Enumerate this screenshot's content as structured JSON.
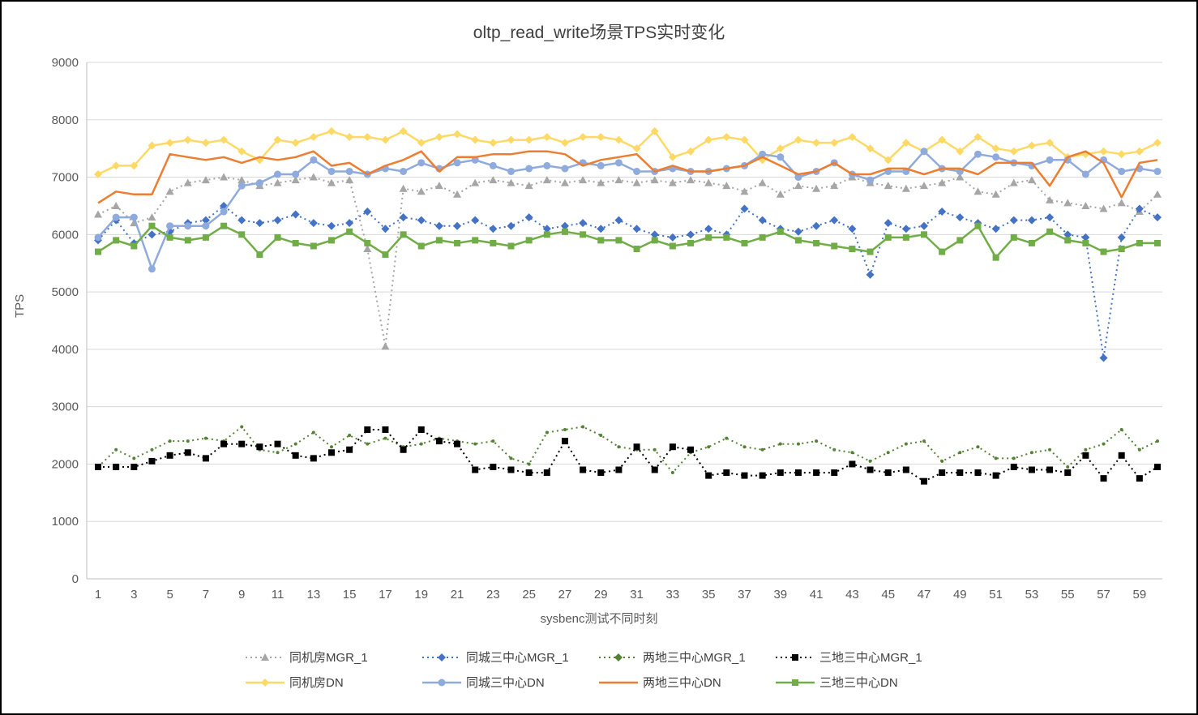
{
  "title": "oltp_read_write场景TPS实时变化",
  "axes": {
    "y_label": "TPS",
    "x_label": "sysbenc测试不同时刻"
  },
  "chart_data": {
    "type": "line",
    "title": "oltp_read_write场景TPS实时变化",
    "xlabel": "sysbenc测试不同时刻",
    "ylabel": "TPS",
    "ylim": [
      0,
      9000
    ],
    "y_tick_step": 1000,
    "grid": "horizontal",
    "legend_position": "bottom",
    "x": [
      1,
      2,
      3,
      4,
      5,
      6,
      7,
      8,
      9,
      10,
      11,
      12,
      13,
      14,
      15,
      16,
      17,
      18,
      19,
      20,
      21,
      22,
      23,
      24,
      25,
      26,
      27,
      28,
      29,
      30,
      31,
      32,
      33,
      34,
      35,
      36,
      37,
      38,
      39,
      40,
      41,
      42,
      43,
      44,
      45,
      46,
      47,
      48,
      49,
      50,
      51,
      52,
      53,
      54,
      55,
      56,
      57,
      58,
      59,
      60
    ],
    "x_ticks": [
      1,
      3,
      5,
      7,
      9,
      11,
      13,
      15,
      17,
      19,
      21,
      23,
      25,
      27,
      29,
      31,
      33,
      35,
      37,
      39,
      41,
      43,
      45,
      47,
      49,
      51,
      53,
      55,
      57,
      59
    ],
    "series": [
      {
        "name": "同机房MGR_1",
        "color": "#A6A6A6",
        "dash": "dotted",
        "marker": "triangle",
        "values": [
          6350,
          6500,
          6200,
          6300,
          6750,
          6900,
          6950,
          7000,
          6950,
          6850,
          6900,
          6950,
          7000,
          6900,
          6950,
          5750,
          4050,
          6800,
          6750,
          6850,
          6700,
          6900,
          6950,
          6900,
          6850,
          6950,
          6900,
          6950,
          6900,
          6950,
          6900,
          6950,
          6900,
          6950,
          6900,
          6850,
          6750,
          6900,
          6700,
          6850,
          6800,
          6850,
          7000,
          6900,
          6850,
          6800,
          6850,
          6900,
          7000,
          6750,
          6700,
          6900,
          6950,
          6600,
          6550,
          6500,
          6450,
          6550,
          6400,
          6700
        ]
      },
      {
        "name": "同城三中心MGR_1",
        "color": "#4472C4",
        "dash": "dotted",
        "marker": "diamond",
        "values": [
          5900,
          6250,
          5850,
          6000,
          6050,
          6200,
          6250,
          6500,
          6250,
          6200,
          6250,
          6350,
          6200,
          6150,
          6200,
          6400,
          6100,
          6300,
          6250,
          6150,
          6150,
          6250,
          6100,
          6150,
          6300,
          6100,
          6150,
          6200,
          6100,
          6250,
          6100,
          6000,
          5950,
          6000,
          6100,
          6000,
          6450,
          6250,
          6100,
          6050,
          6150,
          6250,
          6100,
          5300,
          6200,
          6100,
          6150,
          6400,
          6300,
          6200,
          6100,
          6250,
          6250,
          6300,
          6000,
          5950,
          3850,
          5950,
          6450,
          6300
        ]
      },
      {
        "name": "两地三中心MGR_1",
        "color": "#548235",
        "dash": "dotted",
        "marker": "dot",
        "values": [
          1950,
          2250,
          2100,
          2250,
          2400,
          2400,
          2450,
          2400,
          2650,
          2250,
          2200,
          2350,
          2550,
          2300,
          2500,
          2350,
          2450,
          2300,
          2350,
          2450,
          2400,
          2350,
          2400,
          2100,
          2000,
          2550,
          2600,
          2650,
          2500,
          2300,
          2250,
          2250,
          1850,
          2200,
          2300,
          2450,
          2300,
          2250,
          2350,
          2350,
          2400,
          2250,
          2200,
          2050,
          2200,
          2350,
          2400,
          2050,
          2200,
          2300,
          2100,
          2100,
          2200,
          2250,
          1950,
          2250,
          2350,
          2600,
          2250,
          2400
        ]
      },
      {
        "name": "三地三中心MGR_1",
        "color": "#000000",
        "dash": "dotted",
        "marker": "square",
        "values": [
          1950,
          1950,
          1950,
          2050,
          2150,
          2200,
          2100,
          2350,
          2350,
          2300,
          2350,
          2150,
          2100,
          2200,
          2250,
          2600,
          2600,
          2250,
          2600,
          2400,
          2350,
          1900,
          1950,
          1900,
          1850,
          1850,
          2400,
          1900,
          1850,
          1900,
          2300,
          1900,
          2300,
          2250,
          1800,
          1850,
          1800,
          1800,
          1850,
          1850,
          1850,
          1850,
          2000,
          1900,
          1850,
          1900,
          1700,
          1850,
          1850,
          1850,
          1800,
          1950,
          1900,
          1900,
          1850,
          2150,
          1750,
          2150,
          1750,
          1950
        ]
      },
      {
        "name": "同机房DN",
        "color": "#FFD966",
        "dash": "solid",
        "marker": "diamond",
        "values": [
          7050,
          7200,
          7200,
          7550,
          7600,
          7650,
          7600,
          7650,
          7450,
          7300,
          7650,
          7600,
          7700,
          7800,
          7700,
          7700,
          7650,
          7800,
          7600,
          7700,
          7750,
          7650,
          7600,
          7650,
          7650,
          7700,
          7600,
          7700,
          7700,
          7650,
          7500,
          7800,
          7350,
          7450,
          7650,
          7700,
          7650,
          7300,
          7500,
          7650,
          7600,
          7600,
          7700,
          7500,
          7300,
          7600,
          7450,
          7650,
          7450,
          7700,
          7500,
          7450,
          7550,
          7600,
          7350,
          7400,
          7450,
          7400,
          7450,
          7600
        ]
      },
      {
        "name": "同城三中心DN",
        "color": "#8FAADC",
        "dash": "solid",
        "marker": "circle",
        "values": [
          5950,
          6300,
          6300,
          5400,
          6150,
          6150,
          6150,
          6400,
          6850,
          6900,
          7050,
          7050,
          7300,
          7100,
          7100,
          7050,
          7150,
          7100,
          7250,
          7150,
          7250,
          7300,
          7200,
          7100,
          7150,
          7200,
          7150,
          7250,
          7200,
          7250,
          7100,
          7100,
          7150,
          7100,
          7100,
          7150,
          7200,
          7400,
          7350,
          7000,
          7100,
          7250,
          7050,
          6950,
          7100,
          7100,
          7450,
          7150,
          7100,
          7400,
          7350,
          7250,
          7200,
          7300,
          7300,
          7050,
          7300,
          7100,
          7150,
          7100
        ]
      },
      {
        "name": "两地三中心DN",
        "color": "#ED7D31",
        "dash": "solid",
        "marker": "none",
        "values": [
          6550,
          6750,
          6700,
          6700,
          7400,
          7350,
          7300,
          7350,
          7250,
          7350,
          7300,
          7350,
          7450,
          7200,
          7250,
          7050,
          7200,
          7300,
          7450,
          7100,
          7350,
          7350,
          7400,
          7400,
          7450,
          7450,
          7400,
          7200,
          7300,
          7350,
          7400,
          7100,
          7200,
          7100,
          7100,
          7150,
          7200,
          7350,
          7200,
          7050,
          7100,
          7250,
          7050,
          7050,
          7150,
          7150,
          7050,
          7150,
          7150,
          7050,
          7250,
          7250,
          7250,
          6850,
          7350,
          7450,
          7250,
          6650,
          7250,
          7300
        ]
      },
      {
        "name": "三地三中心DN",
        "color": "#70AD47",
        "dash": "solid",
        "marker": "square",
        "values": [
          5700,
          5900,
          5800,
          6150,
          5950,
          5900,
          5950,
          6150,
          6000,
          5650,
          5950,
          5850,
          5800,
          5900,
          6050,
          5850,
          5650,
          6000,
          5800,
          5900,
          5850,
          5900,
          5850,
          5800,
          5900,
          6000,
          6050,
          6000,
          5900,
          5900,
          5750,
          5900,
          5800,
          5850,
          5950,
          5950,
          5850,
          5950,
          6050,
          5900,
          5850,
          5800,
          5750,
          5700,
          5950,
          5950,
          6000,
          5700,
          5900,
          6150,
          5600,
          5950,
          5850,
          6050,
          5900,
          5850,
          5700,
          5750,
          5850,
          5850
        ]
      }
    ]
  }
}
